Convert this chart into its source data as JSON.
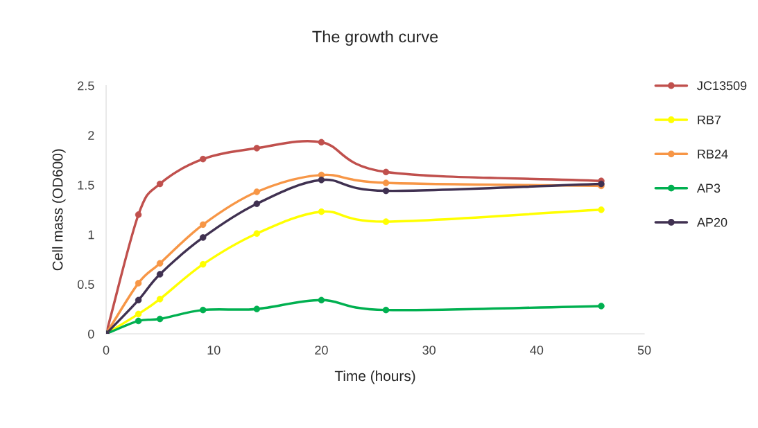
{
  "chart_data": {
    "type": "line",
    "title": "The growth curve",
    "xlabel": "Time (hours)",
    "ylabel": "Cell mass (OD600)",
    "x": [
      0,
      3,
      5,
      9,
      14,
      20,
      26,
      46
    ],
    "series": [
      {
        "name": "JC13509",
        "color": "#c0504d",
        "values": [
          0,
          1.2,
          1.51,
          1.76,
          1.87,
          1.93,
          1.63,
          1.54
        ]
      },
      {
        "name": "RB7",
        "color": "#ffff00",
        "values": [
          0,
          0.2,
          0.35,
          0.7,
          1.01,
          1.23,
          1.13,
          1.25
        ]
      },
      {
        "name": "RB24",
        "color": "#f79646",
        "values": [
          0,
          0.51,
          0.71,
          1.1,
          1.43,
          1.6,
          1.52,
          1.49
        ]
      },
      {
        "name": "AP3",
        "color": "#00b050",
        "values": [
          0,
          0.13,
          0.15,
          0.24,
          0.25,
          0.34,
          0.24,
          0.28
        ]
      },
      {
        "name": "AP20",
        "color": "#403151",
        "values": [
          0,
          0.34,
          0.6,
          0.97,
          1.31,
          1.55,
          1.44,
          1.51
        ]
      }
    ],
    "xlim": [
      0,
      50
    ],
    "xticks": [
      0,
      10,
      20,
      30,
      40,
      50
    ],
    "ylim": [
      0,
      2.5
    ],
    "yticks": [
      0,
      0.5,
      1,
      1.5,
      2,
      2.5
    ],
    "legend": "right",
    "marker": "circle",
    "line_style": "solid",
    "grid": false
  }
}
